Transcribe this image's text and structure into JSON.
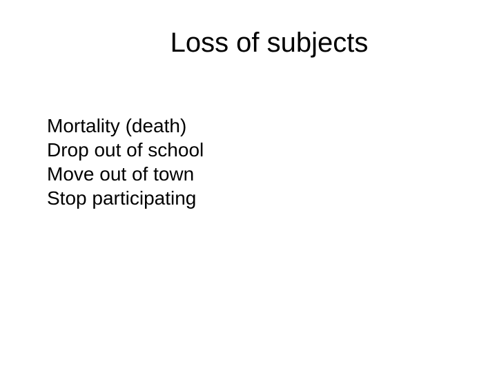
{
  "slide": {
    "title": "Loss of subjects",
    "lines": [
      "Mortality (death)",
      "Drop out of school",
      "Move out of town",
      "Stop participating"
    ],
    "background_color": "#ffffff",
    "text_color": "#000000",
    "title_fontsize": 40,
    "body_fontsize": 28,
    "title_align": "center",
    "body_line_height": 1.25
  }
}
